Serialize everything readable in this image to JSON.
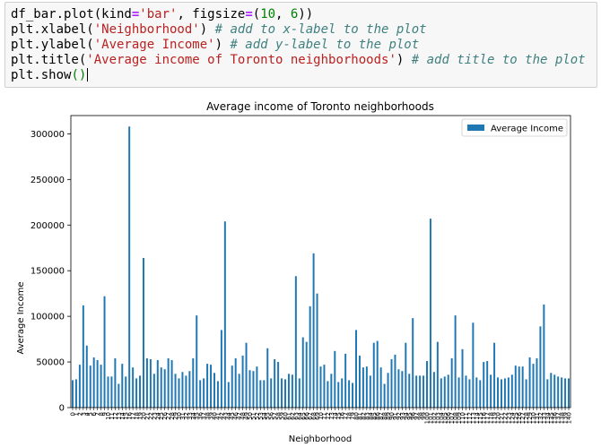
{
  "code": {
    "lines": [
      [
        {
          "t": "df_bar.plot(kind",
          "c": ""
        },
        {
          "t": "=",
          "c": "cm-op"
        },
        {
          "t": "'bar'",
          "c": "cm-str"
        },
        {
          "t": ", figsize",
          "c": ""
        },
        {
          "t": "=",
          "c": "cm-op"
        },
        {
          "t": "(",
          "c": ""
        },
        {
          "t": "10",
          "c": "cm-num"
        },
        {
          "t": ", ",
          "c": ""
        },
        {
          "t": "6",
          "c": "cm-num"
        },
        {
          "t": "))",
          "c": ""
        }
      ],
      [
        {
          "t": "plt.xlabel(",
          "c": ""
        },
        {
          "t": "'Neighborhood'",
          "c": "cm-str"
        },
        {
          "t": ") ",
          "c": ""
        },
        {
          "t": "# add to x-label to the plot",
          "c": "cm-com"
        }
      ],
      [
        {
          "t": "plt.ylabel(",
          "c": ""
        },
        {
          "t": "'Average Income'",
          "c": "cm-str"
        },
        {
          "t": ") ",
          "c": ""
        },
        {
          "t": "# add y-label to the plot",
          "c": "cm-com"
        }
      ],
      [
        {
          "t": "plt.title(",
          "c": ""
        },
        {
          "t": "'Average income of Toronto neighborhoods'",
          "c": "cm-str"
        },
        {
          "t": ") ",
          "c": ""
        },
        {
          "t": "# add title to the plot",
          "c": "cm-com"
        }
      ],
      [
        {
          "t": "plt.show",
          "c": ""
        },
        {
          "t": "()",
          "c": "cm-paren"
        }
      ]
    ]
  },
  "chart_data": {
    "type": "bar",
    "title": "Average income of Toronto neighborhoods",
    "xlabel": "Neighborhood",
    "ylabel": "Average Income",
    "legend": [
      "Average Income"
    ],
    "legend_position": "top-right",
    "ylim": [
      0,
      320000
    ],
    "yticks": [
      0,
      50000,
      100000,
      150000,
      200000,
      250000,
      300000
    ],
    "yticklabels": [
      "0",
      "50000",
      "100000",
      "150000",
      "200000",
      "250000",
      "300000"
    ],
    "bar_color": "#1f77b4",
    "categories": [
      "0",
      "1",
      "2",
      "3",
      "4",
      "5",
      "6",
      "7",
      "8",
      "9",
      "10",
      "11",
      "12",
      "13",
      "14",
      "15",
      "16",
      "17",
      "18",
      "19",
      "20",
      "21",
      "22",
      "23",
      "24",
      "25",
      "26",
      "27",
      "28",
      "29",
      "30",
      "31",
      "32",
      "33",
      "34",
      "35",
      "36",
      "37",
      "38",
      "39",
      "40",
      "41",
      "42",
      "43",
      "44",
      "45",
      "46",
      "47",
      "48",
      "49",
      "50",
      "51",
      "52",
      "53",
      "54",
      "55",
      "56",
      "57",
      "58",
      "59",
      "60",
      "61",
      "62",
      "63",
      "64",
      "65",
      "66",
      "67",
      "68",
      "69",
      "70",
      "71",
      "72",
      "73",
      "74",
      "75",
      "76",
      "77",
      "78",
      "79",
      "80",
      "81",
      "82",
      "83",
      "84",
      "85",
      "86",
      "87",
      "88",
      "89",
      "90",
      "91",
      "92",
      "93",
      "94",
      "95",
      "96",
      "97",
      "98",
      "99",
      "100",
      "101",
      "102",
      "103",
      "104",
      "105",
      "106",
      "107",
      "108",
      "109",
      "110",
      "111",
      "112",
      "113",
      "114",
      "115",
      "116",
      "117",
      "118",
      "119",
      "120",
      "121",
      "122",
      "123",
      "124",
      "125",
      "126",
      "127",
      "128",
      "129",
      "130",
      "131",
      "132",
      "133",
      "134",
      "135",
      "136",
      "137",
      "138",
      "139",
      "140"
    ],
    "values": [
      30000,
      31000,
      47000,
      112000,
      68000,
      46000,
      55000,
      52000,
      47000,
      122000,
      34000,
      34000,
      54000,
      26000,
      48000,
      34000,
      308000,
      44000,
      32000,
      35000,
      164000,
      54000,
      53000,
      37000,
      52000,
      44000,
      42000,
      54000,
      52000,
      37000,
      32000,
      39000,
      35000,
      40000,
      54000,
      101000,
      30000,
      32000,
      48000,
      47000,
      38000,
      29000,
      85000,
      204000,
      28000,
      46000,
      54000,
      37000,
      57000,
      71000,
      41000,
      40000,
      45000,
      30000,
      30000,
      65000,
      32000,
      53000,
      50000,
      32000,
      31000,
      37000,
      36000,
      144000,
      32000,
      77000,
      72000,
      111000,
      169000,
      125000,
      45000,
      47000,
      29000,
      37000,
      62000,
      28000,
      32000,
      59000,
      30000,
      27000,
      85000,
      57000,
      44000,
      45000,
      35000,
      71000,
      73000,
      44000,
      26000,
      38000,
      53000,
      58000,
      42000,
      40000,
      71000,
      37000,
      98000,
      35000,
      35000,
      35000,
      51000,
      207000,
      39000,
      72000,
      32000,
      34000,
      36000,
      54000,
      101000,
      33000,
      64000,
      35000,
      31000,
      93000,
      33000,
      30000,
      50000,
      51000,
      36000,
      71000,
      33000,
      31000,
      32000,
      33000,
      36000,
      46000,
      45000,
      45000,
      31000,
      55000,
      48000,
      54000,
      89000,
      113000,
      31000,
      38000,
      36000,
      34000,
      33000,
      32000,
      32000
    ]
  }
}
